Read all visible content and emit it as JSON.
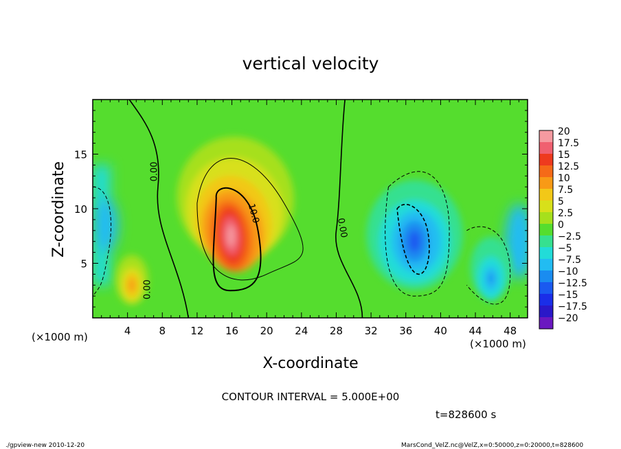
{
  "chart_data": {
    "type": "heatmap",
    "title": "vertical velocity",
    "xlabel": "X-coordinate",
    "ylabel": "Z-coordinate",
    "x_unit": "(×1000 m)",
    "y_unit": "(×1000 m)",
    "xlim": [
      0,
      50
    ],
    "ylim": [
      0,
      20
    ],
    "xticks": [
      4,
      8,
      12,
      16,
      20,
      24,
      28,
      32,
      36,
      40,
      44,
      48
    ],
    "yticks": [
      5,
      10,
      15
    ],
    "colorbar": {
      "min": -20,
      "max": 20,
      "labels": [
        "20",
        "17.5",
        "15",
        "12.5",
        "10",
        "7.5",
        "5",
        "2.5",
        "0",
        "−2.5",
        "−5",
        "−7.5",
        "−10",
        "−12.5",
        "−15",
        "−17.5",
        "−20"
      ],
      "values": [
        20,
        17.5,
        15,
        12.5,
        10,
        7.5,
        5,
        2.5,
        0,
        -2.5,
        -5,
        -7.5,
        -10,
        -12.5,
        -15,
        -17.5,
        -20
      ],
      "colors": [
        "#f59aa0",
        "#f06070",
        "#ee3a1e",
        "#f56a18",
        "#f89a16",
        "#f2c818",
        "#d8e01a",
        "#a6e01c",
        "#55dd2e",
        "#36e090",
        "#22dcd8",
        "#22bcf2",
        "#1a8cf0",
        "#1a5af0",
        "#1a2ee8",
        "#2a18c8",
        "#6a18c0"
      ]
    },
    "contour_interval": "CONTOUR INTERVAL = 5.000E+00",
    "contour_labels": [
      "0.00",
      "10.0",
      "0.00",
      "0.00"
    ],
    "features": [
      {
        "kind": "updraft",
        "x": 15.9,
        "z": 7.5,
        "peak": 19
      },
      {
        "kind": "updraft",
        "x": 4.5,
        "z": 3.0,
        "peak": 8.5
      },
      {
        "kind": "downdraft",
        "x": 37.0,
        "z": 7.0,
        "peak": -11
      },
      {
        "kind": "downdraft",
        "x": 45.8,
        "z": 3.6,
        "peak": -9
      }
    ],
    "time_label": "t=828600 s"
  },
  "footer": {
    "left": "./gpview-new  2010-12-20",
    "right": "MarsCond_VelZ.nc@VelZ,x=0:50000,z=0:20000,t=828600"
  }
}
